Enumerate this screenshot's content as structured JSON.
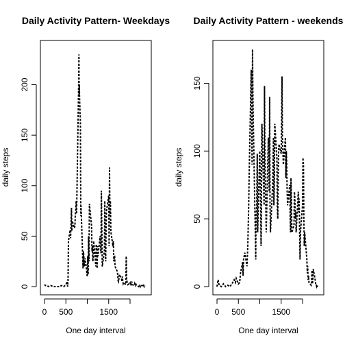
{
  "chart_data": [
    {
      "type": "line",
      "title": "Daily Activity Pattern- Weekdays",
      "xlabel": "One day interval",
      "ylabel": "daily steps",
      "xlim": [
        0,
        2400
      ],
      "ylim": [
        0,
        235
      ],
      "xticks": [
        0,
        500,
        1000,
        1500,
        2000
      ],
      "xtick_labels": [
        "0",
        "500",
        "",
        "1500",
        ""
      ],
      "yticks": [
        0,
        50,
        100,
        150,
        200
      ],
      "grid": false,
      "line_style": "dashed",
      "series": [
        {
          "x": [
            0,
            25,
            50,
            100,
            150,
            200,
            300,
            350,
            400,
            450,
            500,
            530,
            540,
            550,
            560,
            600,
            610,
            620,
            630,
            640,
            650,
            700,
            710,
            720,
            730,
            740,
            750,
            800,
            805,
            810,
            815,
            820,
            825,
            830,
            835,
            840,
            845,
            850,
            855,
            900,
            905,
            910,
            920,
            930,
            940,
            950,
            1000,
            1010,
            1020,
            1030,
            1040,
            1050,
            1100,
            1110,
            1120,
            1130,
            1140,
            1150,
            1200,
            1210,
            1220,
            1230,
            1240,
            1250,
            1300,
            1310,
            1320,
            1330,
            1340,
            1350,
            1400,
            1410,
            1420,
            1430,
            1440,
            1450,
            1500,
            1510,
            1520,
            1530,
            1540,
            1550,
            1600,
            1610,
            1620,
            1630,
            1640,
            1650,
            1700,
            1710,
            1720,
            1730,
            1740,
            1750,
            1800,
            1810,
            1820,
            1830,
            1840,
            1850,
            1900,
            1910,
            1920,
            1930,
            1940,
            1950,
            2000,
            2010,
            2020,
            2030,
            2040,
            2050,
            2100,
            2110,
            2120,
            2130,
            2140,
            2150,
            2200,
            2210,
            2220,
            2230,
            2240,
            2250,
            2300,
            2310,
            2320,
            2330,
            2340,
            2355
          ],
          "y": [
            2,
            1,
            1,
            0,
            1,
            0,
            0,
            0,
            1,
            0,
            2,
            5,
            0,
            6,
            45,
            56,
            48,
            62,
            78,
            55,
            65,
            58,
            60,
            70,
            75,
            85,
            72,
            205,
            230,
            190,
            200,
            185,
            180,
            172,
            170,
            160,
            105,
            70,
            80,
            18,
            25,
            35,
            30,
            20,
            24,
            28,
            10,
            30,
            12,
            50,
            25,
            82,
            60,
            35,
            40,
            25,
            30,
            45,
            20,
            42,
            35,
            18,
            40,
            30,
            50,
            40,
            33,
            95,
            55,
            20,
            35,
            85,
            40,
            25,
            60,
            75,
            90,
            40,
            118,
            70,
            85,
            55,
            40,
            45,
            25,
            30,
            30,
            20,
            15,
            12,
            6,
            5,
            8,
            12,
            8,
            5,
            10,
            5,
            3,
            4,
            2,
            30,
            8,
            5,
            3,
            2,
            4,
            2,
            1,
            3,
            5,
            2,
            1,
            3,
            2,
            1,
            2,
            1,
            0,
            1,
            2,
            1,
            0,
            1,
            1,
            0,
            1,
            0,
            1,
            1
          ]
        }
      ]
    },
    {
      "type": "line",
      "title": "Daily Activity Pattern - weekends",
      "xlabel": "One day interval",
      "ylabel": "daily steps",
      "xlim": [
        0,
        2400
      ],
      "ylim": [
        0,
        175
      ],
      "xticks": [
        0,
        500,
        1000,
        1500,
        2000
      ],
      "xtick_labels": [
        "0",
        "500",
        "",
        "1500",
        ""
      ],
      "yticks": [
        0,
        50,
        100,
        150
      ],
      "grid": false,
      "line_style": "dashed",
      "series": [
        {
          "x": [
            0,
            25,
            50,
            100,
            150,
            200,
            250,
            300,
            350,
            400,
            430,
            450,
            500,
            530,
            550,
            600,
            610,
            620,
            650,
            700,
            720,
            740,
            750,
            800,
            810,
            820,
            830,
            840,
            850,
            900,
            905,
            910,
            920,
            930,
            940,
            950,
            1000,
            1010,
            1020,
            1030,
            1040,
            1050,
            1100,
            1110,
            1120,
            1130,
            1140,
            1150,
            1200,
            1210,
            1220,
            1230,
            1240,
            1250,
            1300,
            1310,
            1320,
            1330,
            1340,
            1350,
            1400,
            1410,
            1420,
            1430,
            1440,
            1450,
            1500,
            1510,
            1520,
            1530,
            1540,
            1550,
            1600,
            1610,
            1620,
            1630,
            1640,
            1650,
            1700,
            1710,
            1720,
            1730,
            1740,
            1750,
            1800,
            1810,
            1820,
            1830,
            1840,
            1850,
            1900,
            1910,
            1920,
            1930,
            1940,
            1950,
            2000,
            2010,
            2020,
            2030,
            2040,
            2050,
            2100,
            2110,
            2120,
            2130,
            2140,
            2150,
            2200,
            2210,
            2220,
            2230,
            2240,
            2250,
            2300,
            2310,
            2320,
            2330,
            2340,
            2355
          ],
          "y": [
            0,
            5,
            1,
            0,
            2,
            0,
            1,
            0,
            2,
            5,
            3,
            6,
            2,
            3,
            10,
            18,
            8,
            20,
            25,
            15,
            30,
            60,
            80,
            160,
            120,
            90,
            175,
            140,
            120,
            30,
            20,
            45,
            55,
            60,
            98,
            40,
            100,
            80,
            60,
            30,
            70,
            120,
            60,
            148,
            100,
            80,
            60,
            40,
            110,
            90,
            70,
            140,
            60,
            40,
            75,
            90,
            110,
            60,
            80,
            120,
            95,
            60,
            50,
            80,
            100,
            105,
            98,
            120,
            155,
            110,
            100,
            90,
            110,
            80,
            100,
            90,
            70,
            60,
            75,
            50,
            40,
            80,
            60,
            40,
            45,
            70,
            65,
            50,
            55,
            40,
            70,
            55,
            65,
            45,
            20,
            40,
            60,
            95,
            90,
            50,
            30,
            40,
            20,
            10,
            15,
            5,
            8,
            3,
            1,
            3,
            12,
            2,
            5,
            13,
            4,
            1,
            1,
            0,
            1,
            0
          ]
        }
      ]
    }
  ]
}
